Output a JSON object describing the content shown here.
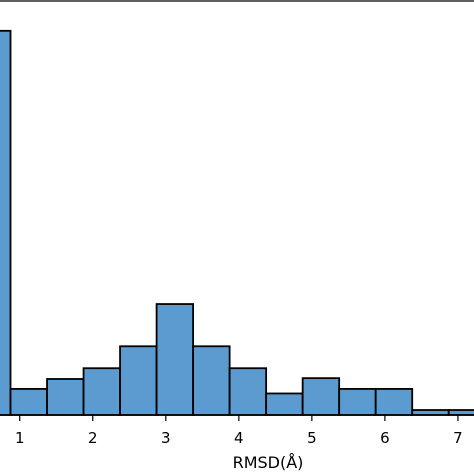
{
  "chart_data": {
    "type": "bar",
    "title": "",
    "xlabel": "RMSD(Å)",
    "ylabel": "",
    "bar_color": "#5b9bd0",
    "edge_color": "#000000",
    "grid": false,
    "xlim": [
      0.73,
      7.22
    ],
    "ylim": [
      0,
      100
    ],
    "xticks": [
      1,
      2,
      3,
      4,
      5,
      6,
      7
    ],
    "bins": [
      {
        "x0": 0.5,
        "x1": 0.874,
        "count": 92.8
      },
      {
        "x0": 0.874,
        "x1": 1.374,
        "count": 6.3
      },
      {
        "x0": 1.374,
        "x1": 1.874,
        "count": 8.7
      },
      {
        "x0": 1.874,
        "x1": 2.374,
        "count": 11.3
      },
      {
        "x0": 2.374,
        "x1": 2.874,
        "count": 16.6
      },
      {
        "x0": 2.874,
        "x1": 3.374,
        "count": 26.8
      },
      {
        "x0": 3.374,
        "x1": 3.874,
        "count": 16.6
      },
      {
        "x0": 3.874,
        "x1": 4.374,
        "count": 11.3
      },
      {
        "x0": 4.374,
        "x1": 4.874,
        "count": 5.2
      },
      {
        "x0": 4.874,
        "x1": 5.374,
        "count": 8.9
      },
      {
        "x0": 5.374,
        "x1": 5.874,
        "count": 6.3
      },
      {
        "x0": 5.874,
        "x1": 6.374,
        "count": 6.3
      },
      {
        "x0": 6.374,
        "x1": 6.874,
        "count": 1.2
      },
      {
        "x0": 6.874,
        "x1": 7.374,
        "count": 1.2
      }
    ]
  }
}
